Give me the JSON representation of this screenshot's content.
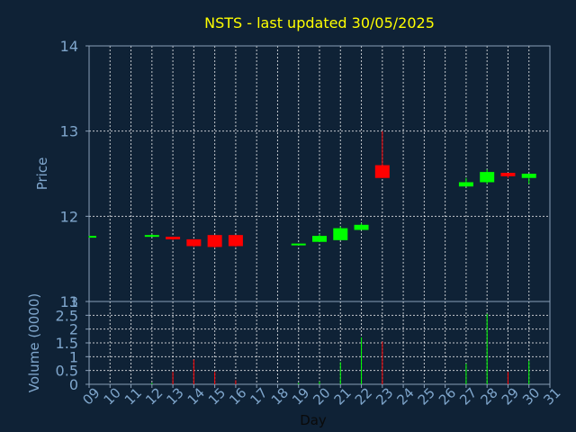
{
  "chart_data": {
    "type": "candlestick",
    "title": "NSTS - last updated 30/05/2025",
    "xlabel": "Day",
    "price_panel": {
      "ylabel": "Price",
      "ylim": [
        11,
        14
      ],
      "yticks": [
        "14",
        "13",
        "12",
        "11"
      ],
      "grid": true
    },
    "volume_panel": {
      "ylabel": "Volume (0000)",
      "ylim": [
        0,
        3
      ],
      "yticks": [
        "3",
        "2.5",
        "2",
        "1.5",
        "1",
        "0.5",
        "0"
      ],
      "grid": true
    },
    "days": [
      "09",
      "10",
      "11",
      "12",
      "13",
      "14",
      "15",
      "16",
      "17",
      "18",
      "19",
      "20",
      "21",
      "22",
      "23",
      "24",
      "25",
      "26",
      "27",
      "28",
      "29",
      "30",
      "31"
    ],
    "candles": [
      {
        "day": 9,
        "open": 11.75,
        "close": 11.77,
        "high": 11.77,
        "low": 11.75,
        "volume": 0.0
      },
      {
        "day": 12,
        "open": 11.77,
        "close": 11.78,
        "high": 11.79,
        "low": 11.76,
        "volume": 0.05
      },
      {
        "day": 13,
        "open": 11.76,
        "close": 11.73,
        "high": 11.76,
        "low": 11.72,
        "volume": 0.45
      },
      {
        "day": 14,
        "open": 11.73,
        "close": 11.65,
        "high": 11.73,
        "low": 11.64,
        "volume": 0.9
      },
      {
        "day": 15,
        "open": 11.78,
        "close": 11.64,
        "high": 11.78,
        "low": 11.63,
        "volume": 0.45
      },
      {
        "day": 16,
        "open": 11.78,
        "close": 11.65,
        "high": 11.78,
        "low": 11.64,
        "volume": 0.15
      },
      {
        "day": 19,
        "open": 11.66,
        "close": 11.68,
        "high": 11.68,
        "low": 11.66,
        "volume": 0.05
      },
      {
        "day": 20,
        "open": 11.7,
        "close": 11.77,
        "high": 11.79,
        "low": 11.7,
        "volume": 0.1
      },
      {
        "day": 21,
        "open": 11.72,
        "close": 11.86,
        "high": 11.88,
        "low": 11.72,
        "volume": 0.8
      },
      {
        "day": 22,
        "open": 11.84,
        "close": 11.9,
        "high": 11.92,
        "low": 11.84,
        "volume": 1.7
      },
      {
        "day": 23,
        "open": 12.6,
        "close": 12.45,
        "high": 13.0,
        "low": 12.45,
        "volume": 1.55
      },
      {
        "day": 27,
        "open": 12.35,
        "close": 12.4,
        "high": 12.45,
        "low": 12.35,
        "volume": 0.75
      },
      {
        "day": 28,
        "open": 12.4,
        "close": 12.52,
        "high": 12.55,
        "low": 12.38,
        "volume": 2.55
      },
      {
        "day": 29,
        "open": 12.51,
        "close": 12.47,
        "high": 12.51,
        "low": 12.45,
        "volume": 0.45
      },
      {
        "day": 30,
        "open": 12.45,
        "close": 12.5,
        "high": 12.5,
        "low": 12.38,
        "volume": 0.85
      }
    ],
    "colors": {
      "background": "#0f2236",
      "axis": "#8aa0b8",
      "grid": "#ffffff",
      "text": "#7fa6cc",
      "title": "#ffff00",
      "up": "#00ff00",
      "down": "#ff0000"
    }
  }
}
